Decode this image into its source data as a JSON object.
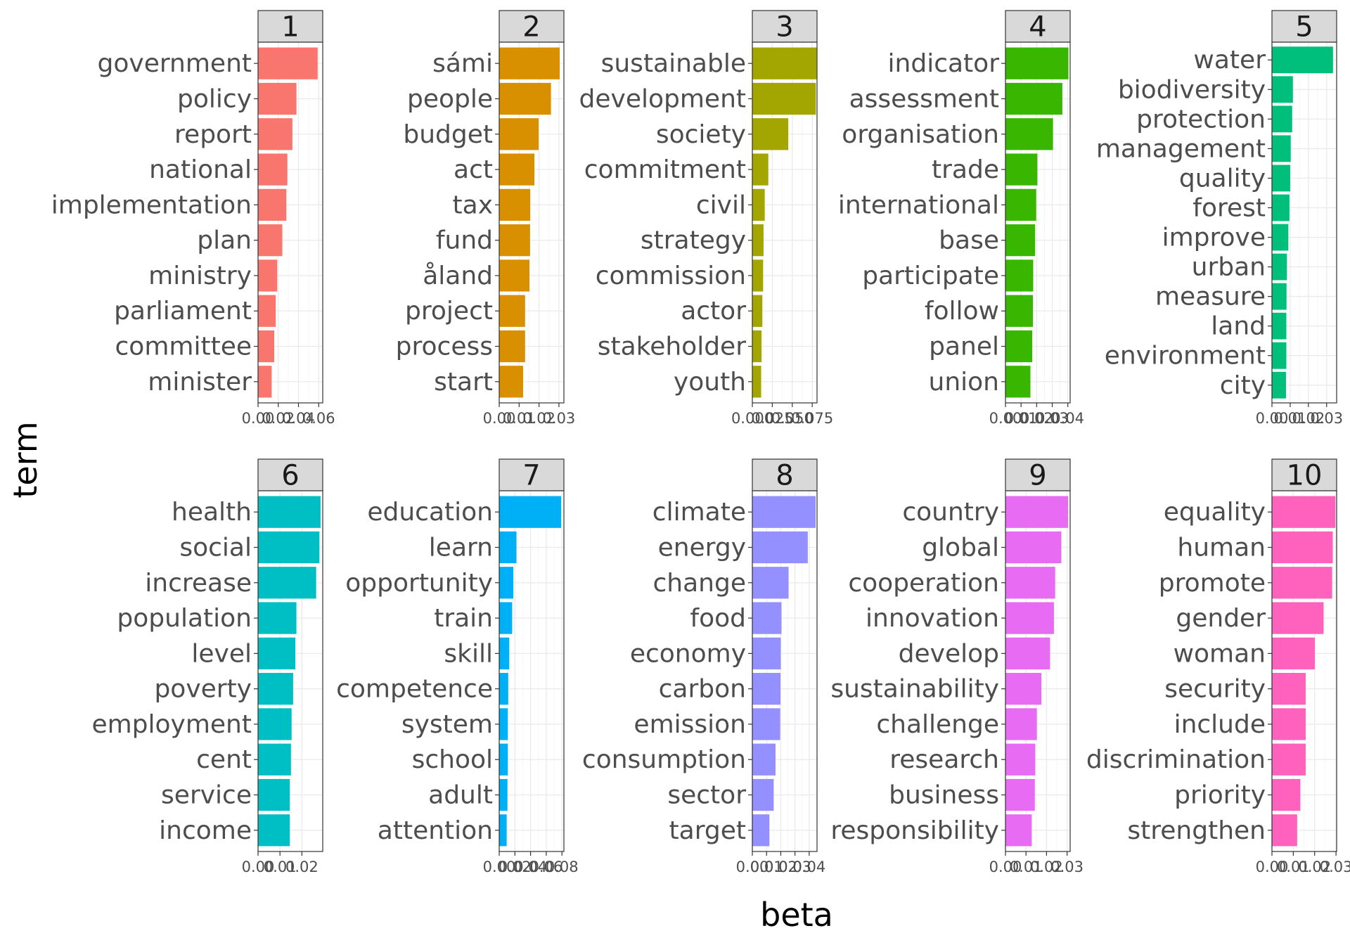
{
  "chart_data": {
    "type": "bar",
    "orientation": "horizontal",
    "facet": "topic",
    "xlabel": "beta",
    "ylabel": "term",
    "grid": true,
    "panels": [
      {
        "label": "1",
        "color": "#F8766D",
        "ticks": [
          "0.00",
          "0.02",
          "0.04",
          "0.06"
        ],
        "xlim": [
          0,
          0.064
        ],
        "terms": [
          "government",
          "policy",
          "report",
          "national",
          "implementation",
          "plan",
          "ministry",
          "parliament",
          "committee",
          "minister"
        ],
        "values": [
          0.059,
          0.038,
          0.034,
          0.029,
          0.028,
          0.024,
          0.019,
          0.0175,
          0.016,
          0.0135
        ]
      },
      {
        "label": "2",
        "color": "#D89000",
        "ticks": [
          "0.00",
          "0.01",
          "0.02",
          "0.03"
        ],
        "xlim": [
          0,
          0.0325
        ],
        "terms": [
          "sámi",
          "people",
          "budget",
          "act",
          "tax",
          "fund",
          "åland",
          "project",
          "process",
          "start"
        ],
        "values": [
          0.0304,
          0.026,
          0.0198,
          0.0177,
          0.0156,
          0.0155,
          0.0152,
          0.013,
          0.013,
          0.012
        ]
      },
      {
        "label": "3",
        "color": "#A3A500",
        "ticks": [
          "0.000",
          "0.025",
          "0.050",
          "0.075"
        ],
        "xlim": [
          0,
          0.081
        ],
        "terms": [
          "sustainable",
          "development",
          "society",
          "commitment",
          "civil",
          "strategy",
          "commission",
          "actor",
          "stakeholder",
          "youth"
        ],
        "values": [
          0.0805,
          0.0795,
          0.045,
          0.02,
          0.0155,
          0.014,
          0.0135,
          0.0125,
          0.0115,
          0.011
        ]
      },
      {
        "label": "4",
        "color": "#39B600",
        "ticks": [
          "0.00",
          "0.01",
          "0.02",
          "0.03",
          "0.04"
        ],
        "xlim": [
          0,
          0.0415
        ],
        "terms": [
          "indicator",
          "assessment",
          "organisation",
          "trade",
          "international",
          "base",
          "participate",
          "follow",
          "panel",
          "union"
        ],
        "values": [
          0.0404,
          0.0365,
          0.0305,
          0.0205,
          0.0197,
          0.019,
          0.0178,
          0.0176,
          0.0172,
          0.016
        ]
      },
      {
        "label": "5",
        "color": "#00BF7D",
        "ticks": [
          "0.00",
          "0.01",
          "0.02",
          "0.03"
        ],
        "xlim": [
          0,
          0.0355
        ],
        "terms": [
          "water",
          "biodiversity",
          "protection",
          "management",
          "quality",
          "forest",
          "improve",
          "urban",
          "measure",
          "land",
          "environment",
          "city"
        ],
        "values": [
          0.0335,
          0.0115,
          0.0111,
          0.0103,
          0.01,
          0.0096,
          0.009,
          0.0082,
          0.008,
          0.0079,
          0.0079,
          0.0077
        ]
      },
      {
        "label": "6",
        "color": "#00BFC4",
        "ticks": [
          "0.00",
          "0.01",
          "0.02"
        ],
        "xlim": [
          0,
          0.0295
        ],
        "terms": [
          "health",
          "social",
          "increase",
          "population",
          "level",
          "poverty",
          "employment",
          "cent",
          "service",
          "income"
        ],
        "values": [
          0.0285,
          0.028,
          0.0265,
          0.0175,
          0.017,
          0.016,
          0.0153,
          0.015,
          0.0145,
          0.0145
        ]
      },
      {
        "label": "7",
        "color": "#00B0F6",
        "ticks": [
          "0.00",
          "0.02",
          "0.04",
          "0.06",
          "0.08"
        ],
        "xlim": [
          0,
          0.0825
        ],
        "terms": [
          "education",
          "learn",
          "opportunity",
          "train",
          "skill",
          "competence",
          "system",
          "school",
          "adult",
          "attention"
        ],
        "values": [
          0.079,
          0.022,
          0.018,
          0.0165,
          0.0128,
          0.0115,
          0.011,
          0.011,
          0.0105,
          0.0095
        ]
      },
      {
        "label": "8",
        "color": "#9590FF",
        "ticks": [
          "0.00",
          "0.01",
          "0.02",
          "0.03",
          "0.04"
        ],
        "xlim": [
          0,
          0.0455
        ],
        "terms": [
          "climate",
          "energy",
          "change",
          "food",
          "economy",
          "carbon",
          "emission",
          "consumption",
          "sector",
          "target"
        ],
        "values": [
          0.0445,
          0.039,
          0.0255,
          0.0205,
          0.02,
          0.0198,
          0.0196,
          0.0163,
          0.015,
          0.012
        ]
      },
      {
        "label": "9",
        "color": "#E76BF3",
        "ticks": [
          "0.00",
          "0.01",
          "0.02",
          "0.03"
        ],
        "xlim": [
          0,
          0.0315
        ],
        "terms": [
          "country",
          "global",
          "cooperation",
          "innovation",
          "develop",
          "sustainability",
          "challenge",
          "research",
          "business",
          "responsibility"
        ],
        "values": [
          0.0305,
          0.0272,
          0.0242,
          0.0236,
          0.0217,
          0.0175,
          0.0153,
          0.0145,
          0.0143,
          0.0128
        ]
      },
      {
        "label": "10",
        "color": "#FF62BC",
        "ticks": [
          "0.00",
          "0.01",
          "0.02",
          "0.03"
        ],
        "xlim": [
          0,
          0.0303
        ],
        "terms": [
          "equality",
          "human",
          "promote",
          "gender",
          "woman",
          "security",
          "include",
          "discrimination",
          "priority",
          "strengthen"
        ],
        "values": [
          0.0297,
          0.0285,
          0.0282,
          0.0242,
          0.0201,
          0.0158,
          0.0158,
          0.0158,
          0.0133,
          0.0118
        ]
      }
    ]
  }
}
